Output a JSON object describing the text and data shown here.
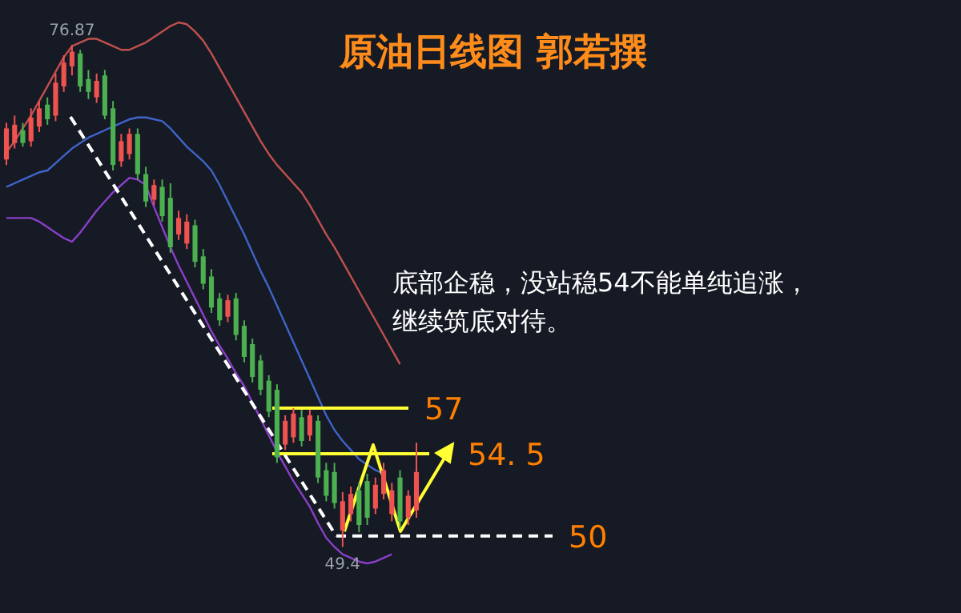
{
  "chart_data": {
    "type": "candlestick",
    "title": "原油日线图 郭若撰",
    "categories": [
      null,
      null,
      null,
      null,
      null,
      null,
      null,
      null,
      null,
      null,
      null,
      null,
      null,
      null,
      null,
      null,
      null,
      null,
      null,
      null,
      null,
      null,
      null,
      null,
      null,
      null,
      null,
      null,
      null,
      null,
      null,
      null,
      null,
      null,
      null,
      null,
      null,
      null,
      null,
      null,
      null,
      null,
      null,
      null,
      null,
      null,
      null,
      null,
      null,
      null,
      null
    ],
    "ohlc": [
      [
        70.6,
        72.6,
        70.3,
        72.3
      ],
      [
        71.5,
        73.0,
        71.2,
        72.5
      ],
      [
        72.2,
        72.6,
        71.3,
        71.5
      ],
      [
        71.6,
        73.4,
        71.3,
        72.9
      ],
      [
        72.4,
        73.8,
        72.1,
        73.4
      ],
      [
        73.6,
        74.0,
        72.5,
        72.8
      ],
      [
        73.0,
        75.3,
        72.7,
        74.8
      ],
      [
        74.6,
        76.3,
        74.3,
        75.9
      ],
      [
        75.7,
        76.87,
        75.2,
        76.5
      ],
      [
        76.4,
        76.6,
        74.3,
        74.6
      ],
      [
        75.0,
        75.5,
        73.9,
        74.3
      ],
      [
        74.0,
        75.3,
        73.7,
        74.9
      ],
      [
        75.2,
        75.5,
        72.8,
        73.0
      ],
      [
        73.4,
        73.8,
        70.0,
        70.3
      ],
      [
        70.5,
        72.0,
        70.2,
        71.6
      ],
      [
        70.9,
        72.3,
        70.6,
        72.0
      ],
      [
        72.0,
        72.3,
        69.5,
        69.8
      ],
      [
        69.8,
        70.2,
        68.0,
        68.3
      ],
      [
        68.4,
        69.5,
        68.1,
        69.2
      ],
      [
        69.1,
        69.5,
        67.2,
        67.5
      ],
      [
        68.5,
        69.3,
        65.5,
        65.8
      ],
      [
        66.5,
        67.8,
        66.2,
        67.4
      ],
      [
        66.0,
        67.6,
        65.7,
        67.2
      ],
      [
        67.0,
        67.3,
        64.7,
        65.0
      ],
      [
        65.3,
        65.7,
        63.5,
        63.8
      ],
      [
        64.2,
        64.6,
        62.2,
        62.5
      ],
      [
        63.0,
        63.3,
        61.5,
        61.8
      ],
      [
        62.0,
        63.2,
        61.7,
        62.9
      ],
      [
        63.0,
        63.3,
        60.7,
        61.0
      ],
      [
        61.5,
        61.8,
        59.5,
        59.8
      ],
      [
        60.5,
        60.8,
        58.4,
        58.7
      ],
      [
        59.6,
        59.9,
        57.7,
        58.0
      ],
      [
        58.5,
        58.8,
        56.5,
        56.8
      ],
      [
        58.0,
        58.3,
        54.0,
        54.3
      ],
      [
        55.0,
        56.6,
        54.7,
        56.3
      ],
      [
        55.4,
        57.0,
        55.1,
        56.7
      ],
      [
        56.5,
        56.9,
        54.9,
        55.2
      ],
      [
        55.5,
        56.9,
        55.2,
        56.6
      ],
      [
        56.3,
        56.6,
        52.9,
        53.2
      ],
      [
        53.6,
        54.0,
        51.9,
        52.2
      ],
      [
        53.5,
        54.0,
        51.5,
        51.8
      ],
      [
        50.3,
        52.4,
        49.4,
        51.9
      ],
      [
        51.2,
        52.7,
        50.8,
        52.3
      ],
      [
        52.5,
        52.9,
        50.2,
        50.6
      ],
      [
        53.0,
        53.4,
        50.6,
        51.0
      ],
      [
        51.5,
        53.2,
        51.2,
        52.8
      ],
      [
        52.3,
        54.0,
        52.0,
        53.6
      ],
      [
        51.2,
        52.9,
        50.8,
        52.5
      ],
      [
        53.2,
        53.6,
        50.4,
        50.8
      ],
      [
        51.0,
        52.5,
        50.6,
        52.2
      ],
      [
        51.4,
        55.1,
        51.0,
        53.5
      ]
    ],
    "colors": [
      "#ef5350",
      "#ef5350",
      "#4caf50",
      "#ef5350",
      "#ef5350",
      "#4caf50",
      "#ef5350",
      "#ef5350",
      "#ef5350",
      "#4caf50",
      "#4caf50",
      "#ef5350",
      "#4caf50",
      "#4caf50",
      "#ef5350",
      "#ef5350",
      "#4caf50",
      "#4caf50",
      "#ef5350",
      "#4caf50",
      "#4caf50",
      "#ef5350",
      "#ef5350",
      "#4caf50",
      "#4caf50",
      "#4caf50",
      "#4caf50",
      "#ef5350",
      "#4caf50",
      "#4caf50",
      "#4caf50",
      "#4caf50",
      "#4caf50",
      "#4caf50",
      "#ef5350",
      "#ef5350",
      "#4caf50",
      "#ef5350",
      "#4caf50",
      "#4caf50",
      "#4caf50",
      "#ef5350",
      "#ef5350",
      "#4caf50",
      "#4caf50",
      "#ef5350",
      "#ef5350",
      "#ef5350",
      "#4caf50",
      "#ef5350",
      "#ef5350"
    ],
    "series": [
      {
        "type": "line",
        "color": "#c0504d",
        "values": [
          71.0,
          71.6,
          72.3,
          73.0,
          73.8,
          74.6,
          75.4,
          76.2,
          76.8,
          77.0,
          77.2,
          77.2,
          77.0,
          76.8,
          76.6,
          76.6,
          76.8,
          77.0,
          77.3,
          77.6,
          77.9,
          78.1,
          78.0,
          77.6,
          77.1,
          76.4,
          75.6,
          74.8,
          74.0,
          73.2,
          72.4,
          71.6,
          70.9,
          70.3,
          69.8,
          69.3,
          68.8,
          68.1,
          67.3,
          66.5,
          65.8,
          65.0,
          64.2,
          63.4,
          62.6,
          61.8,
          61.0,
          60.2,
          59.4,
          null,
          null
        ]
      },
      {
        "type": "line",
        "color": "#3f64c8",
        "values": [
          69.1,
          69.3,
          69.5,
          69.7,
          69.9,
          70.0,
          70.4,
          70.8,
          71.2,
          71.5,
          71.8,
          72.0,
          72.2,
          72.4,
          72.6,
          72.8,
          72.9,
          72.9,
          72.8,
          72.7,
          72.3,
          71.8,
          71.3,
          70.9,
          70.5,
          70.0,
          69.2,
          68.3,
          67.4,
          66.5,
          65.5,
          64.5,
          63.6,
          62.6,
          61.6,
          60.6,
          59.6,
          58.6,
          57.6,
          56.6,
          55.8,
          55.2,
          54.7,
          54.2,
          53.9,
          53.6,
          53.4,
          null,
          null,
          null,
          null
        ]
      },
      {
        "type": "line",
        "color": "#8a3fc8",
        "values": [
          67.4,
          67.4,
          67.4,
          67.4,
          67.2,
          66.9,
          66.6,
          66.3,
          66.1,
          66.6,
          67.2,
          67.8,
          68.3,
          68.8,
          69.2,
          69.6,
          69.5,
          69.2,
          68.0,
          66.9,
          65.8,
          64.8,
          63.9,
          63.0,
          62.1,
          61.2,
          60.4,
          59.7,
          58.9,
          58.2,
          57.3,
          56.4,
          55.5,
          54.6,
          53.8,
          53.0,
          52.3,
          51.6,
          50.7,
          49.9,
          49.4,
          49.0,
          48.8,
          48.6,
          48.5,
          48.6,
          48.8,
          49.0,
          null,
          null,
          null
        ]
      }
    ],
    "ref_lines": [
      {
        "axis": "y",
        "value": 57,
        "label": "57",
        "color": "#ffff33",
        "line_style": "solid"
      },
      {
        "axis": "y",
        "value": 54.5,
        "label": "54. 5",
        "color": "#ffff33",
        "line_style": "solid"
      },
      {
        "axis": "y",
        "value": 50,
        "label": "50",
        "color": "#ffffff",
        "line_style": "dashed"
      }
    ],
    "annotations": [
      {
        "text": "76.87",
        "y": 76.87
      },
      {
        "text": "49.4",
        "y": 49.4
      },
      "底部企稳，没站稳54不能单纯追涨，",
      "继续筑底对待。"
    ]
  }
}
